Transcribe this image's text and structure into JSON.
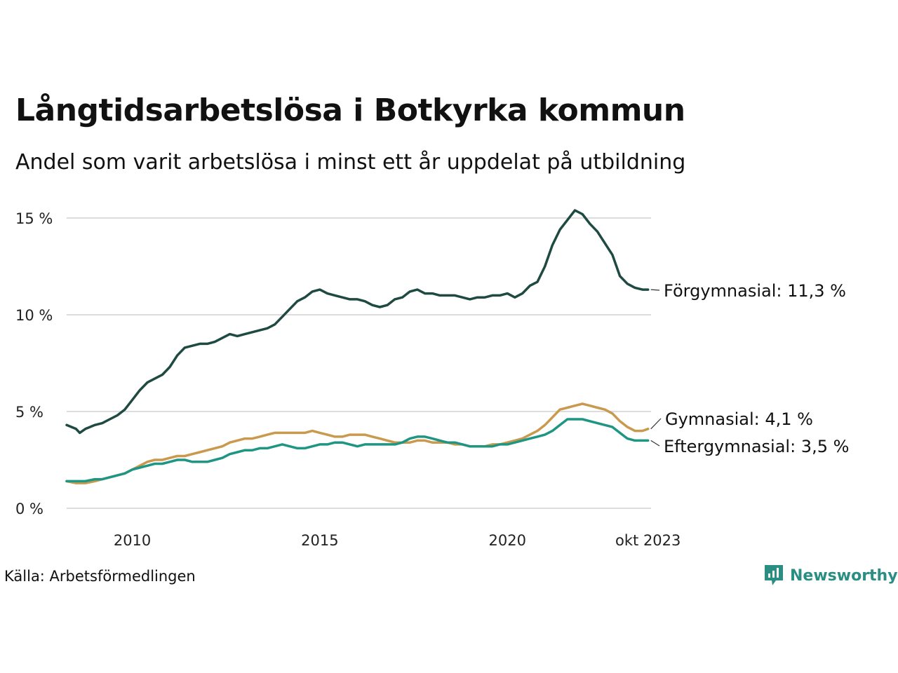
{
  "chart_data": {
    "type": "line",
    "title": "Långtidsarbetslösa i Botkyrka kommun",
    "subtitle": "Andel som varit arbetslösa i minst ett år uppdelat på utbildning",
    "source": "Källa: Arbetsförmedlingen",
    "brand": "Newsworthy",
    "ylim": [
      0,
      15
    ],
    "yticks": [
      {
        "value": 0,
        "label": "0 %"
      },
      {
        "value": 5,
        "label": "5 %"
      },
      {
        "value": 10,
        "label": "10 %"
      },
      {
        "value": 15,
        "label": "15 %"
      }
    ],
    "xlim": [
      2008.25,
      2023.83
    ],
    "xticks": [
      {
        "value": 2010.0,
        "label": "2010"
      },
      {
        "value": 2015.0,
        "label": "2015"
      },
      {
        "value": 2020.0,
        "label": "2020"
      },
      {
        "value": 2023.75,
        "label": "okt 2023"
      }
    ],
    "series": [
      {
        "name": "Förgymnasial",
        "label": "Förgymnasial: 11,3 %",
        "color": "#1f4a42",
        "x": [
          2008.25,
          2008.5,
          2008.6,
          2008.75,
          2009.0,
          2009.2,
          2009.4,
          2009.6,
          2009.8,
          2010.0,
          2010.2,
          2010.4,
          2010.6,
          2010.8,
          2011.0,
          2011.2,
          2011.4,
          2011.6,
          2011.8,
          2012.0,
          2012.2,
          2012.4,
          2012.6,
          2012.8,
          2013.0,
          2013.2,
          2013.4,
          2013.6,
          2013.8,
          2014.0,
          2014.2,
          2014.4,
          2014.6,
          2014.8,
          2015.0,
          2015.2,
          2015.4,
          2015.6,
          2015.8,
          2016.0,
          2016.2,
          2016.4,
          2016.6,
          2016.8,
          2017.0,
          2017.2,
          2017.4,
          2017.6,
          2017.8,
          2018.0,
          2018.2,
          2018.4,
          2018.6,
          2018.8,
          2019.0,
          2019.2,
          2019.4,
          2019.6,
          2019.8,
          2020.0,
          2020.2,
          2020.4,
          2020.6,
          2020.8,
          2021.0,
          2021.2,
          2021.4,
          2021.6,
          2021.8,
          2022.0,
          2022.2,
          2022.4,
          2022.6,
          2022.8,
          2023.0,
          2023.2,
          2023.4,
          2023.6,
          2023.75
        ],
        "values": [
          4.3,
          4.1,
          3.9,
          4.1,
          4.3,
          4.4,
          4.6,
          4.8,
          5.1,
          5.6,
          6.1,
          6.5,
          6.7,
          6.9,
          7.3,
          7.9,
          8.3,
          8.4,
          8.5,
          8.5,
          8.6,
          8.8,
          9.0,
          8.9,
          9.0,
          9.1,
          9.2,
          9.3,
          9.5,
          9.9,
          10.3,
          10.7,
          10.9,
          11.2,
          11.3,
          11.1,
          11.0,
          10.9,
          10.8,
          10.8,
          10.7,
          10.5,
          10.4,
          10.5,
          10.8,
          10.9,
          11.2,
          11.3,
          11.1,
          11.1,
          11.0,
          11.0,
          11.0,
          10.9,
          10.8,
          10.9,
          10.9,
          11.0,
          11.0,
          11.1,
          10.9,
          11.1,
          11.5,
          11.7,
          12.5,
          13.6,
          14.4,
          14.9,
          15.4,
          15.2,
          14.7,
          14.3,
          13.7,
          13.1,
          12.0,
          11.6,
          11.4,
          11.3,
          11.3
        ]
      },
      {
        "name": "Gymnasial",
        "label": "Gymnasial:  4,1 %",
        "color": "#c99a4e",
        "x": [
          2008.25,
          2008.5,
          2008.75,
          2009.0,
          2009.2,
          2009.4,
          2009.6,
          2009.8,
          2010.0,
          2010.2,
          2010.4,
          2010.6,
          2010.8,
          2011.0,
          2011.2,
          2011.4,
          2011.6,
          2011.8,
          2012.0,
          2012.2,
          2012.4,
          2012.6,
          2012.8,
          2013.0,
          2013.2,
          2013.4,
          2013.6,
          2013.8,
          2014.0,
          2014.2,
          2014.4,
          2014.6,
          2014.8,
          2015.0,
          2015.2,
          2015.4,
          2015.6,
          2015.8,
          2016.0,
          2016.2,
          2016.4,
          2016.6,
          2016.8,
          2017.0,
          2017.2,
          2017.4,
          2017.6,
          2017.8,
          2018.0,
          2018.2,
          2018.4,
          2018.6,
          2018.8,
          2019.0,
          2019.2,
          2019.4,
          2019.6,
          2019.8,
          2020.0,
          2020.2,
          2020.4,
          2020.6,
          2020.8,
          2021.0,
          2021.2,
          2021.4,
          2021.6,
          2021.8,
          2022.0,
          2022.2,
          2022.4,
          2022.6,
          2022.8,
          2023.0,
          2023.2,
          2023.4,
          2023.6,
          2023.75
        ],
        "values": [
          1.4,
          1.3,
          1.3,
          1.4,
          1.5,
          1.6,
          1.7,
          1.8,
          2.0,
          2.2,
          2.4,
          2.5,
          2.5,
          2.6,
          2.7,
          2.7,
          2.8,
          2.9,
          3.0,
          3.1,
          3.2,
          3.4,
          3.5,
          3.6,
          3.6,
          3.7,
          3.8,
          3.9,
          3.9,
          3.9,
          3.9,
          3.9,
          4.0,
          3.9,
          3.8,
          3.7,
          3.7,
          3.8,
          3.8,
          3.8,
          3.7,
          3.6,
          3.5,
          3.4,
          3.4,
          3.4,
          3.5,
          3.5,
          3.4,
          3.4,
          3.4,
          3.3,
          3.3,
          3.2,
          3.2,
          3.2,
          3.3,
          3.3,
          3.4,
          3.5,
          3.6,
          3.8,
          4.0,
          4.3,
          4.7,
          5.1,
          5.2,
          5.3,
          5.4,
          5.3,
          5.2,
          5.1,
          4.9,
          4.5,
          4.2,
          4.0,
          4.0,
          4.1
        ]
      },
      {
        "name": "Eftergymnasial",
        "label": "Eftergymnasial:  3,5 %",
        "color": "#1f9683",
        "x": [
          2008.25,
          2008.5,
          2008.75,
          2009.0,
          2009.2,
          2009.4,
          2009.6,
          2009.8,
          2010.0,
          2010.2,
          2010.4,
          2010.6,
          2010.8,
          2011.0,
          2011.2,
          2011.4,
          2011.6,
          2011.8,
          2012.0,
          2012.2,
          2012.4,
          2012.6,
          2012.8,
          2013.0,
          2013.2,
          2013.4,
          2013.6,
          2013.8,
          2014.0,
          2014.2,
          2014.4,
          2014.6,
          2014.8,
          2015.0,
          2015.2,
          2015.4,
          2015.6,
          2015.8,
          2016.0,
          2016.2,
          2016.4,
          2016.6,
          2016.8,
          2017.0,
          2017.2,
          2017.4,
          2017.6,
          2017.8,
          2018.0,
          2018.2,
          2018.4,
          2018.6,
          2018.8,
          2019.0,
          2019.2,
          2019.4,
          2019.6,
          2019.8,
          2020.0,
          2020.2,
          2020.4,
          2020.6,
          2020.8,
          2021.0,
          2021.2,
          2021.4,
          2021.6,
          2021.8,
          2022.0,
          2022.2,
          2022.4,
          2022.6,
          2022.8,
          2023.0,
          2023.2,
          2023.4,
          2023.6,
          2023.75
        ],
        "values": [
          1.4,
          1.4,
          1.4,
          1.5,
          1.5,
          1.6,
          1.7,
          1.8,
          2.0,
          2.1,
          2.2,
          2.3,
          2.3,
          2.4,
          2.5,
          2.5,
          2.4,
          2.4,
          2.4,
          2.5,
          2.6,
          2.8,
          2.9,
          3.0,
          3.0,
          3.1,
          3.1,
          3.2,
          3.3,
          3.2,
          3.1,
          3.1,
          3.2,
          3.3,
          3.3,
          3.4,
          3.4,
          3.3,
          3.2,
          3.3,
          3.3,
          3.3,
          3.3,
          3.3,
          3.4,
          3.6,
          3.7,
          3.7,
          3.6,
          3.5,
          3.4,
          3.4,
          3.3,
          3.2,
          3.2,
          3.2,
          3.2,
          3.3,
          3.3,
          3.4,
          3.5,
          3.6,
          3.7,
          3.8,
          4.0,
          4.3,
          4.6,
          4.6,
          4.6,
          4.5,
          4.4,
          4.3,
          4.2,
          3.9,
          3.6,
          3.5,
          3.5,
          3.5
        ]
      }
    ]
  }
}
